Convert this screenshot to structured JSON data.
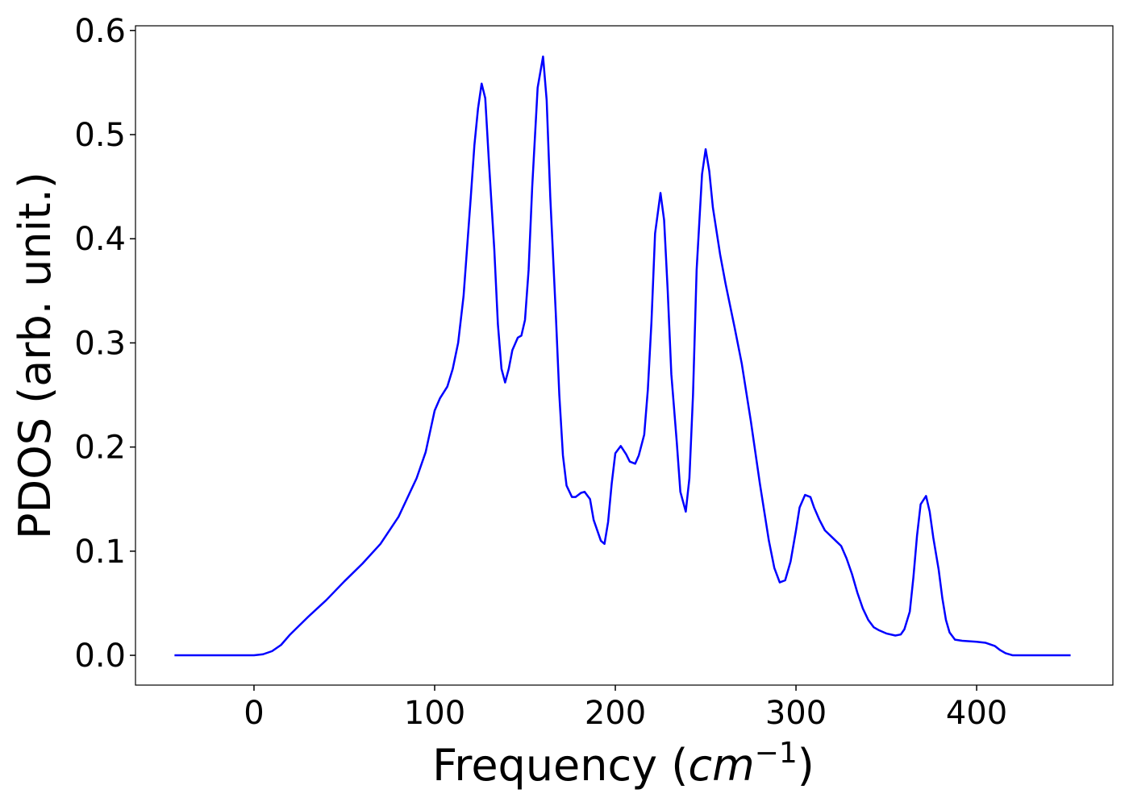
{
  "chart_data": {
    "type": "line",
    "xlabel": [
      "Frequency (",
      "cm",
      "−1",
      ")"
    ],
    "ylabel": "PDOS (arb. unit.)",
    "xlim": [
      -65.6,
      475.4
    ],
    "ylim": [
      -0.0286,
      0.6045
    ],
    "xticks": [
      0,
      100,
      200,
      300,
      400
    ],
    "yticks": [
      {
        "value": 0,
        "label": "0.0"
      },
      0.1,
      0.2,
      0.3,
      0.4,
      0.5,
      0.6
    ],
    "x": [
      -44,
      0,
      5,
      10,
      15,
      20,
      30,
      40,
      50,
      60,
      70,
      80,
      90,
      95,
      100,
      103,
      107,
      110,
      113,
      116,
      120,
      122,
      124,
      126,
      128,
      130,
      133,
      135,
      137,
      139,
      141,
      143,
      146,
      148,
      150,
      152,
      154,
      157,
      160,
      162,
      164,
      167,
      169,
      171,
      173,
      176,
      178,
      181,
      183,
      186,
      188,
      192,
      194,
      196,
      198,
      200,
      203,
      206,
      208,
      211,
      213,
      216,
      218,
      220,
      222,
      225,
      227,
      229,
      231,
      234,
      236,
      239,
      241,
      243,
      245,
      248,
      250,
      252,
      254,
      258,
      261,
      266,
      270,
      275,
      280,
      285,
      288,
      291,
      294,
      297,
      300,
      302,
      305,
      308,
      310,
      313,
      316,
      319,
      322,
      325,
      328,
      331,
      334,
      337,
      340,
      343,
      346,
      350,
      355,
      358,
      360,
      363,
      365,
      367,
      369,
      372,
      374,
      376,
      379,
      381,
      383,
      385,
      388,
      392,
      400,
      405,
      410,
      413,
      416,
      420,
      452
    ],
    "series": [
      {
        "color": "#0000ff",
        "values": [
          0,
          0,
          0.001,
          0.004,
          0.01,
          0.02,
          0.037,
          0.053,
          0.071,
          0.088,
          0.107,
          0.133,
          0.17,
          0.195,
          0.235,
          0.247,
          0.258,
          0.275,
          0.3,
          0.345,
          0.44,
          0.49,
          0.525,
          0.549,
          0.535,
          0.475,
          0.39,
          0.318,
          0.275,
          0.262,
          0.275,
          0.293,
          0.305,
          0.307,
          0.322,
          0.37,
          0.45,
          0.545,
          0.575,
          0.533,
          0.44,
          0.33,
          0.25,
          0.192,
          0.163,
          0.152,
          0.152,
          0.156,
          0.157,
          0.15,
          0.13,
          0.11,
          0.107,
          0.128,
          0.165,
          0.194,
          0.201,
          0.193,
          0.186,
          0.184,
          0.192,
          0.212,
          0.255,
          0.32,
          0.405,
          0.444,
          0.418,
          0.35,
          0.27,
          0.205,
          0.157,
          0.138,
          0.17,
          0.25,
          0.37,
          0.462,
          0.486,
          0.465,
          0.43,
          0.385,
          0.357,
          0.315,
          0.28,
          0.225,
          0.165,
          0.11,
          0.084,
          0.07,
          0.072,
          0.09,
          0.12,
          0.142,
          0.154,
          0.152,
          0.142,
          0.13,
          0.12,
          0.115,
          0.11,
          0.105,
          0.093,
          0.078,
          0.06,
          0.045,
          0.034,
          0.027,
          0.024,
          0.021,
          0.019,
          0.02,
          0.025,
          0.042,
          0.075,
          0.115,
          0.145,
          0.153,
          0.138,
          0.113,
          0.082,
          0.055,
          0.034,
          0.022,
          0.015,
          0.014,
          0.013,
          0.012,
          0.009,
          0.005,
          0.002,
          0,
          0
        ]
      }
    ]
  }
}
